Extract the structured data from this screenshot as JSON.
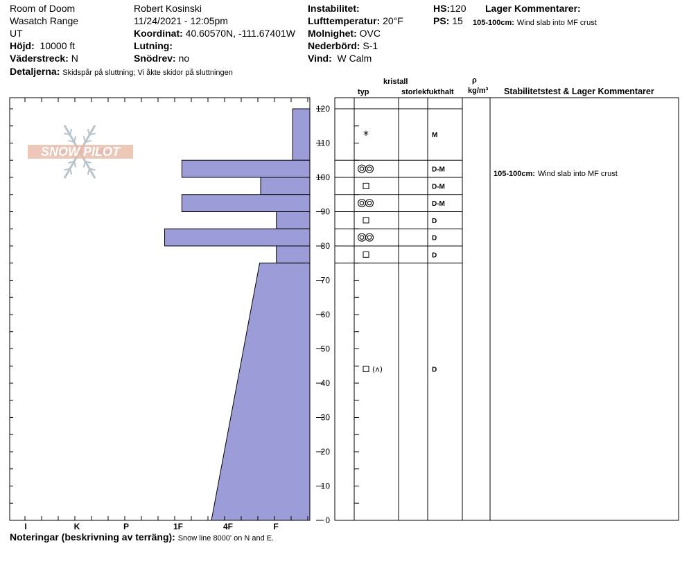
{
  "header": {
    "location": "Room of Doom",
    "range": "Wasatch Range",
    "state": "UT",
    "elevation_label": "Höjd:",
    "elevation": "10000 ft",
    "aspect_label": "Väderstreck:",
    "aspect": "N",
    "observer": "Robert  Kosinski",
    "datetime": "11/24/2021 - 12:05pm",
    "coord_label": "Koordinat:",
    "coord": "40.60570N, -111.67401W",
    "slope_label": "Lutning:",
    "slope": "",
    "drift_label": "Snödrev:",
    "drift": "no",
    "instability_label": "Instabilitet:",
    "instability": "",
    "airtemp_label": "Lufttemperatur:",
    "airtemp": "20°F",
    "sky_label": "Molnighet:",
    "sky": "OVC",
    "precip_label": "Nederbörd:",
    "precip": "S-1",
    "wind_label": "Vind:",
    "wind": "W Calm",
    "hs_label": "HS:",
    "hs": "120",
    "ps_label": "PS:",
    "ps": "15",
    "layer_comments_label": "Lager Kommentarer:",
    "layer_comment_range": "105-100cm:",
    "layer_comment_text": "Wind slab into MF crust",
    "details_label": "Detaljerna:",
    "details": "Skidspår på sluttning;  Vi åkte skidor på sluttningen"
  },
  "logo_text": "SNOW PILOT",
  "columns": {
    "kristall": "kristall",
    "typ": "typ",
    "storlek": "storlek",
    "fukthalt": "fukthalt",
    "rho": "ρ",
    "density_unit": "kg/m³",
    "stability": "Stabilitetstest & Lager Kommentarer"
  },
  "notes_label": "Noteringar (beskrivning av terräng):",
  "notes": "Snow line 8000' on N and E.",
  "stability_comment_range": "105-100cm:",
  "stability_comment_text": "Wind slab into MF crust",
  "colors": {
    "hardness_fill": "#9c9cd8",
    "hardness_stroke": "#000000",
    "logo": "#e8b9a6",
    "flake": "#b8c4cc"
  },
  "chart_data": {
    "type": "hardness_profile",
    "ylim": [
      0,
      120
    ],
    "y_ticks": [
      0,
      10,
      20,
      30,
      40,
      50,
      60,
      70,
      80,
      90,
      100,
      110,
      120
    ],
    "hardness_scale": [
      "I",
      "K",
      "P",
      "1F",
      "4F",
      "F"
    ],
    "layers": [
      {
        "top": 120,
        "bottom": 105,
        "hardness_top": 0.35,
        "hardness_bottom": 0.35,
        "crystal": "new-snow",
        "wetness": "M"
      },
      {
        "top": 105,
        "bottom": 100,
        "hardness_top": 2.6,
        "hardness_bottom": 2.6,
        "crystal": "melt-form",
        "wetness": "D-M"
      },
      {
        "top": 100,
        "bottom": 95,
        "hardness_top": 1.0,
        "hardness_bottom": 1.0,
        "crystal": "faceted",
        "wetness": "D-M"
      },
      {
        "top": 95,
        "bottom": 90,
        "hardness_top": 2.6,
        "hardness_bottom": 2.6,
        "crystal": "melt-form",
        "wetness": "D-M"
      },
      {
        "top": 90,
        "bottom": 85,
        "hardness_top": 0.68,
        "hardness_bottom": 0.68,
        "crystal": "faceted",
        "wetness": "D"
      },
      {
        "top": 85,
        "bottom": 80,
        "hardness_top": 2.95,
        "hardness_bottom": 2.95,
        "crystal": "melt-form",
        "wetness": "D"
      },
      {
        "top": 80,
        "bottom": 75,
        "hardness_top": 0.68,
        "hardness_bottom": 0.68,
        "crystal": "faceted",
        "wetness": "D"
      },
      {
        "top": 75,
        "bottom": 0,
        "hardness_top": 1.02,
        "hardness_bottom": 2.0,
        "crystal": "faceted-depth-hoar",
        "wetness": "D"
      }
    ]
  }
}
